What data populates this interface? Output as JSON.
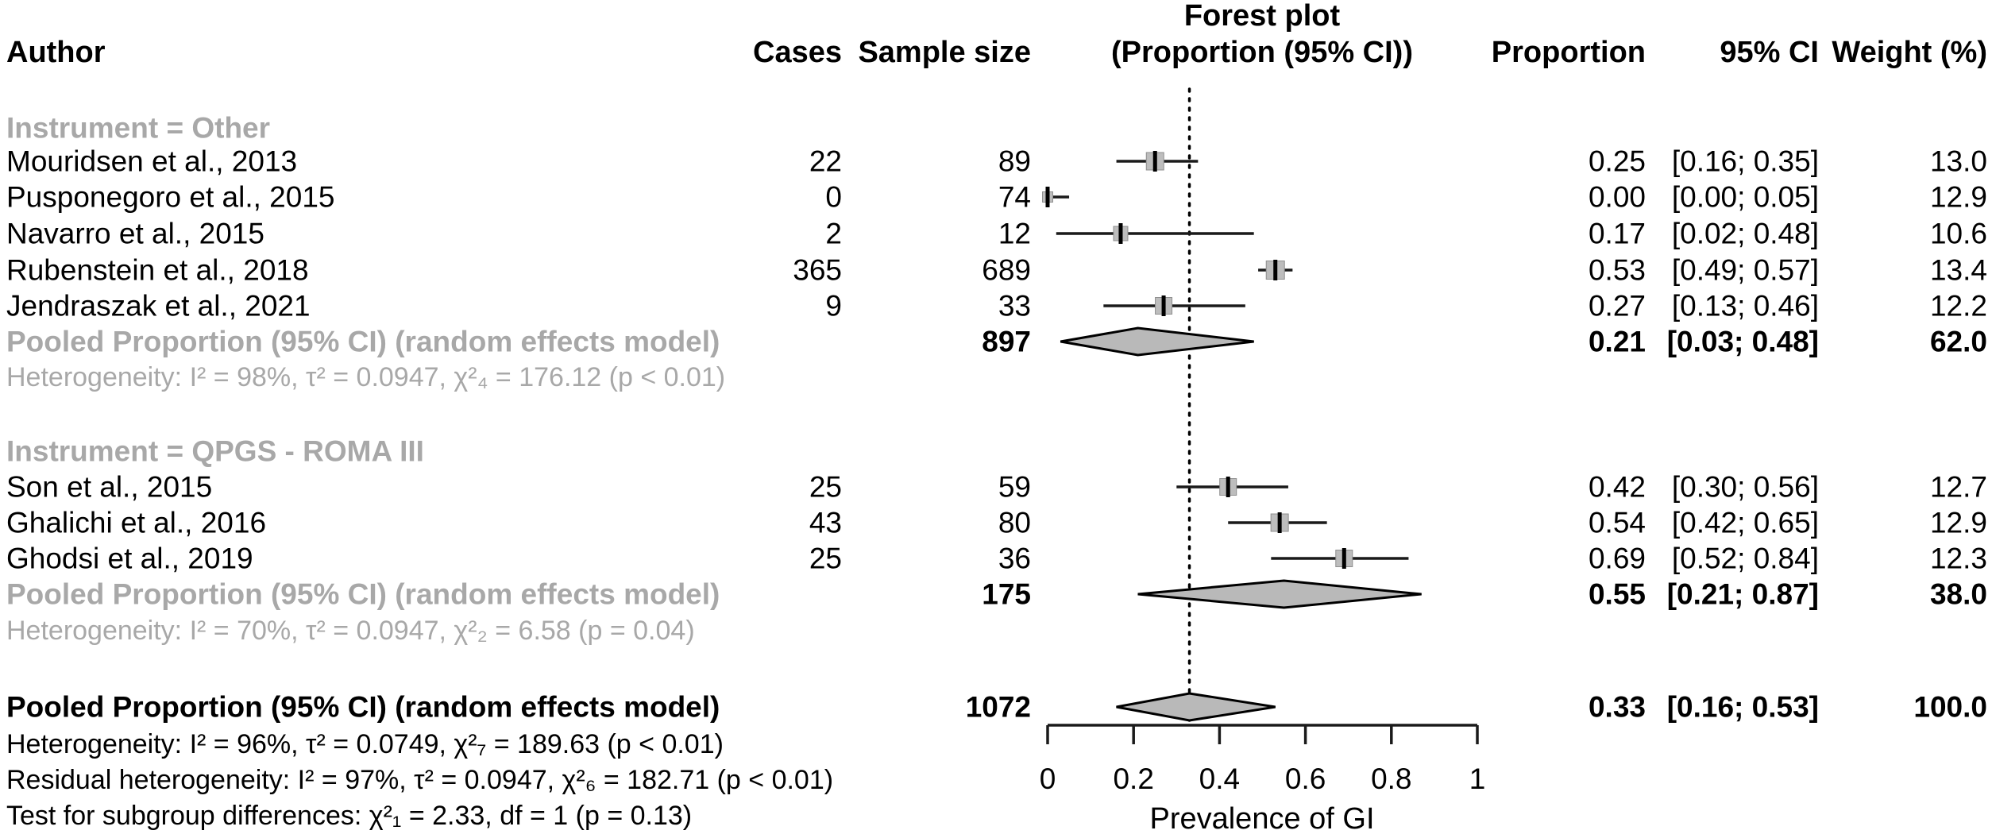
{
  "header": {
    "author": "Author",
    "cases": "Cases",
    "sample_size": "Sample size",
    "plot_title": "Forest plot",
    "plot_subtitle": "(Proportion (95% CI))",
    "proportion": "Proportion",
    "ci": "95% CI",
    "weight": "Weight (%)"
  },
  "chart_data": {
    "type": "scatter",
    "subtype": "forest-plot",
    "title": "Forest plot",
    "subtitle": "(Proportion (95% CI))",
    "xlabel": "Prevalence of GI",
    "xlim": [
      0,
      1
    ],
    "xtick_values": [
      0,
      0.2,
      0.4,
      0.6,
      0.8,
      1
    ],
    "xtick_labels": [
      "0",
      "0.2",
      "0.4",
      "0.6",
      "0.8",
      "1"
    ],
    "reference_line_x": 0.33,
    "groups": [
      {
        "label": "Instrument = Other",
        "studies": [
          {
            "author": "Mouridsen et al., 2013",
            "cases": "22",
            "sample_size": "89",
            "estimate": 0.25,
            "ci_low": 0.16,
            "ci_high": 0.35,
            "proportion_text": "0.25",
            "ci_text": "[0.16; 0.35]",
            "weight_text": "13.0",
            "marker_size": 22
          },
          {
            "author": "Pusponegoro et al., 2015",
            "cases": "0",
            "sample_size": "74",
            "estimate": 0.0,
            "ci_low": 0.0,
            "ci_high": 0.05,
            "proportion_text": "0.00",
            "ci_text": "[0.00; 0.05]",
            "weight_text": "12.9",
            "marker_size": 13
          },
          {
            "author": "Navarro et al., 2015",
            "cases": "2",
            "sample_size": "12",
            "estimate": 0.17,
            "ci_low": 0.02,
            "ci_high": 0.48,
            "proportion_text": "0.17",
            "ci_text": "[0.02; 0.48]",
            "weight_text": "10.6",
            "marker_size": 18
          },
          {
            "author": "Rubenstein et al., 2018",
            "cases": "365",
            "sample_size": "689",
            "estimate": 0.53,
            "ci_low": 0.49,
            "ci_high": 0.57,
            "proportion_text": "0.53",
            "ci_text": "[0.49; 0.57]",
            "weight_text": "13.4",
            "marker_size": 23
          },
          {
            "author": "Jendraszak et al., 2021",
            "cases": "9",
            "sample_size": "33",
            "estimate": 0.27,
            "ci_low": 0.13,
            "ci_high": 0.46,
            "proportion_text": "0.27",
            "ci_text": "[0.13; 0.46]",
            "weight_text": "12.2",
            "marker_size": 21
          }
        ],
        "pooled": {
          "label": "Pooled Proportion (95% CI) (random effects model)",
          "sample_size": "897",
          "estimate": 0.21,
          "ci_low": 0.03,
          "ci_high": 0.48,
          "proportion_text": "0.21",
          "ci_text": "[0.03; 0.48]",
          "weight_text": "62.0"
        },
        "heterogeneity": "Heterogeneity: I² = 98%, τ² = 0.0947, χ²₄ = 176.12 (p < 0.01)"
      },
      {
        "label": "Instrument = QPGS - ROMA III",
        "studies": [
          {
            "author": "Son et al., 2015",
            "cases": "25",
            "sample_size": "59",
            "estimate": 0.42,
            "ci_low": 0.3,
            "ci_high": 0.56,
            "proportion_text": "0.42",
            "ci_text": "[0.30; 0.56]",
            "weight_text": "12.7",
            "marker_size": 21
          },
          {
            "author": "Ghalichi et al., 2016",
            "cases": "43",
            "sample_size": "80",
            "estimate": 0.54,
            "ci_low": 0.42,
            "ci_high": 0.65,
            "proportion_text": "0.54",
            "ci_text": "[0.42; 0.65]",
            "weight_text": "12.9",
            "marker_size": 22
          },
          {
            "author": "Ghodsi et al., 2019",
            "cases": "25",
            "sample_size": "36",
            "estimate": 0.69,
            "ci_low": 0.52,
            "ci_high": 0.84,
            "proportion_text": "0.69",
            "ci_text": "[0.52; 0.84]",
            "weight_text": "12.3",
            "marker_size": 21
          }
        ],
        "pooled": {
          "label": "Pooled Proportion (95% CI) (random effects model)",
          "sample_size": "175",
          "estimate": 0.55,
          "ci_low": 0.21,
          "ci_high": 0.87,
          "proportion_text": "0.55",
          "ci_text": "[0.21; 0.87]",
          "weight_text": "38.0"
        },
        "heterogeneity": "Heterogeneity: I² = 70%, τ² = 0.0947, χ²₂ = 6.58 (p = 0.04)"
      }
    ],
    "overall": {
      "label": "Pooled Proportion (95% CI) (random effects model)",
      "sample_size": "1072",
      "estimate": 0.33,
      "ci_low": 0.16,
      "ci_high": 0.53,
      "proportion_text": "0.33",
      "ci_text": "[0.16; 0.53]",
      "weight_text": "100.0"
    },
    "footnotes": [
      "Heterogeneity: I² = 96%, τ² = 0.0749, χ²₇ = 189.63 (p < 0.01)",
      "Residual heterogeneity: I² = 97%, τ² = 0.0947, χ²₆ = 182.71 (p < 0.01)",
      "Test for subgroup differences: χ²₁ = 2.33, df = 1 (p = 0.13)"
    ]
  },
  "colors": {
    "text": "#000000",
    "muted_gray": "#a8a8a8",
    "marker_fill": "#bdbdbd",
    "marker_stroke": "#8f8f8f",
    "diamond_fill": "#b9b9b9",
    "line": "#1a1a1a"
  }
}
